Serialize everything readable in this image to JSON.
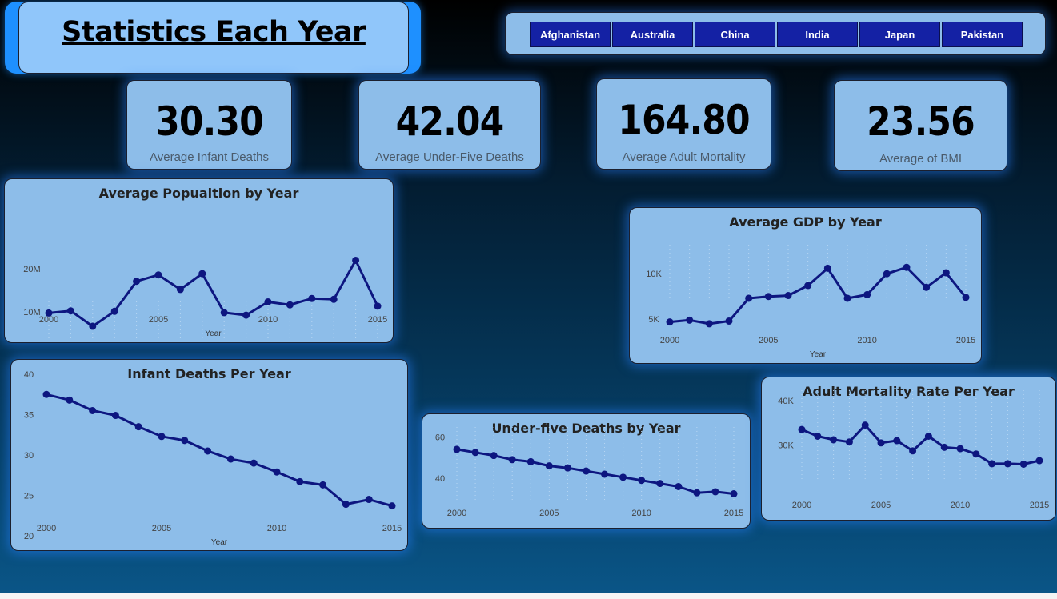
{
  "header": {
    "title": "Statistics Each Year"
  },
  "slicer": {
    "countries": [
      "Afghanistan",
      "Australia",
      "China",
      "India",
      "Japan",
      "Pakistan"
    ]
  },
  "kpis": [
    {
      "value": "30.30",
      "label": "Average Infant Deaths"
    },
    {
      "value": "42.04",
      "label": "Average Under-Five Deaths"
    },
    {
      "value": "164.80",
      "label": "Average Adult Mortality"
    },
    {
      "value": "23.56",
      "label": "Average of  BMI"
    }
  ],
  "colors": {
    "line": "#0d1680",
    "card": "#8dbde9",
    "slicer_button": "#1421a4"
  },
  "chart_data": [
    {
      "id": "population",
      "type": "line",
      "title": "Average Popualtion by Year",
      "xlabel": "Year",
      "ylabel": "",
      "x": [
        2000,
        2001,
        2002,
        2003,
        2004,
        2005,
        2006,
        2007,
        2008,
        2009,
        2010,
        2011,
        2012,
        2013,
        2014,
        2015
      ],
      "values": [
        9.7,
        10.2,
        6.6,
        10.1,
        17.1,
        18.6,
        15.2,
        18.9,
        9.8,
        9.2,
        12.3,
        11.6,
        13.1,
        12.9,
        22.0,
        11.3
      ],
      "ylim": [
        4,
        26
      ],
      "yticks": [
        {
          "v": 10,
          "label": "10M"
        },
        {
          "v": 20,
          "label": "20M"
        }
      ],
      "xticks": [
        2000,
        2005,
        2010,
        2015
      ]
    },
    {
      "id": "gdp",
      "type": "line",
      "title": "Average GDP by Year",
      "xlabel": "Year",
      "ylabel": "",
      "x": [
        2000,
        2001,
        2002,
        2003,
        2004,
        2005,
        2006,
        2007,
        2008,
        2009,
        2010,
        2011,
        2012,
        2013,
        2014,
        2015
      ],
      "values": [
        4.7,
        4.9,
        4.5,
        4.8,
        7.3,
        7.5,
        7.6,
        8.7,
        10.6,
        7.3,
        7.7,
        10.0,
        10.7,
        8.5,
        10.1,
        7.4
      ],
      "ylim": [
        3,
        13
      ],
      "yticks": [
        {
          "v": 5,
          "label": "5K"
        },
        {
          "v": 10,
          "label": "10K"
        }
      ],
      "xticks": [
        2000,
        2005,
        2010,
        2015
      ]
    },
    {
      "id": "infant",
      "type": "line",
      "title": "Infant Deaths Per Year",
      "xlabel": "Year",
      "ylabel": "",
      "x": [
        2000,
        2001,
        2002,
        2003,
        2004,
        2005,
        2006,
        2007,
        2008,
        2009,
        2010,
        2011,
        2012,
        2013,
        2014,
        2015
      ],
      "values": [
        37.5,
        36.8,
        35.5,
        34.9,
        33.5,
        32.3,
        31.8,
        30.5,
        29.5,
        29.0,
        27.9,
        26.7,
        26.3,
        23.9,
        24.5,
        23.7
      ],
      "ylim": [
        20,
        40
      ],
      "yticks": [
        {
          "v": 20,
          "label": "20"
        },
        {
          "v": 25,
          "label": "25"
        },
        {
          "v": 30,
          "label": "30"
        },
        {
          "v": 35,
          "label": "35"
        },
        {
          "v": 40,
          "label": "40"
        }
      ],
      "xticks": [
        2000,
        2005,
        2010,
        2015
      ]
    },
    {
      "id": "underfive",
      "type": "line",
      "title": "Under-five Deaths by Year",
      "xlabel": "",
      "ylabel": "",
      "x": [
        2000,
        2001,
        2002,
        2003,
        2004,
        2005,
        2006,
        2007,
        2008,
        2009,
        2010,
        2011,
        2012,
        2013,
        2014,
        2015
      ],
      "values": [
        54.0,
        52.5,
        51.0,
        49.0,
        48.0,
        46.0,
        45.0,
        43.5,
        42.0,
        40.5,
        39.0,
        37.5,
        36.0,
        33.0,
        33.5,
        32.5
      ],
      "ylim": [
        30,
        64
      ],
      "yticks": [
        {
          "v": 40,
          "label": "40"
        },
        {
          "v": 60,
          "label": "60"
        }
      ],
      "xticks": [
        2000,
        2005,
        2010,
        2015
      ]
    },
    {
      "id": "adult",
      "type": "line",
      "title": "Adult Mortality Rate Per Year",
      "xlabel": "",
      "ylabel": "",
      "x": [
        2000,
        2001,
        2002,
        2003,
        2004,
        2005,
        2006,
        2007,
        2008,
        2009,
        2010,
        2011,
        2012,
        2013,
        2014,
        2015
      ],
      "values": [
        33.5,
        32.0,
        31.2,
        30.7,
        34.5,
        30.5,
        31.0,
        28.7,
        32.0,
        29.5,
        29.2,
        28.0,
        25.8,
        25.8,
        25.7,
        26.5
      ],
      "ylim": [
        22,
        42
      ],
      "yticks": [
        {
          "v": 30,
          "label": "30K"
        },
        {
          "v": 40,
          "label": "40K"
        }
      ],
      "xticks": [
        2000,
        2005,
        2010,
        2015
      ]
    }
  ]
}
